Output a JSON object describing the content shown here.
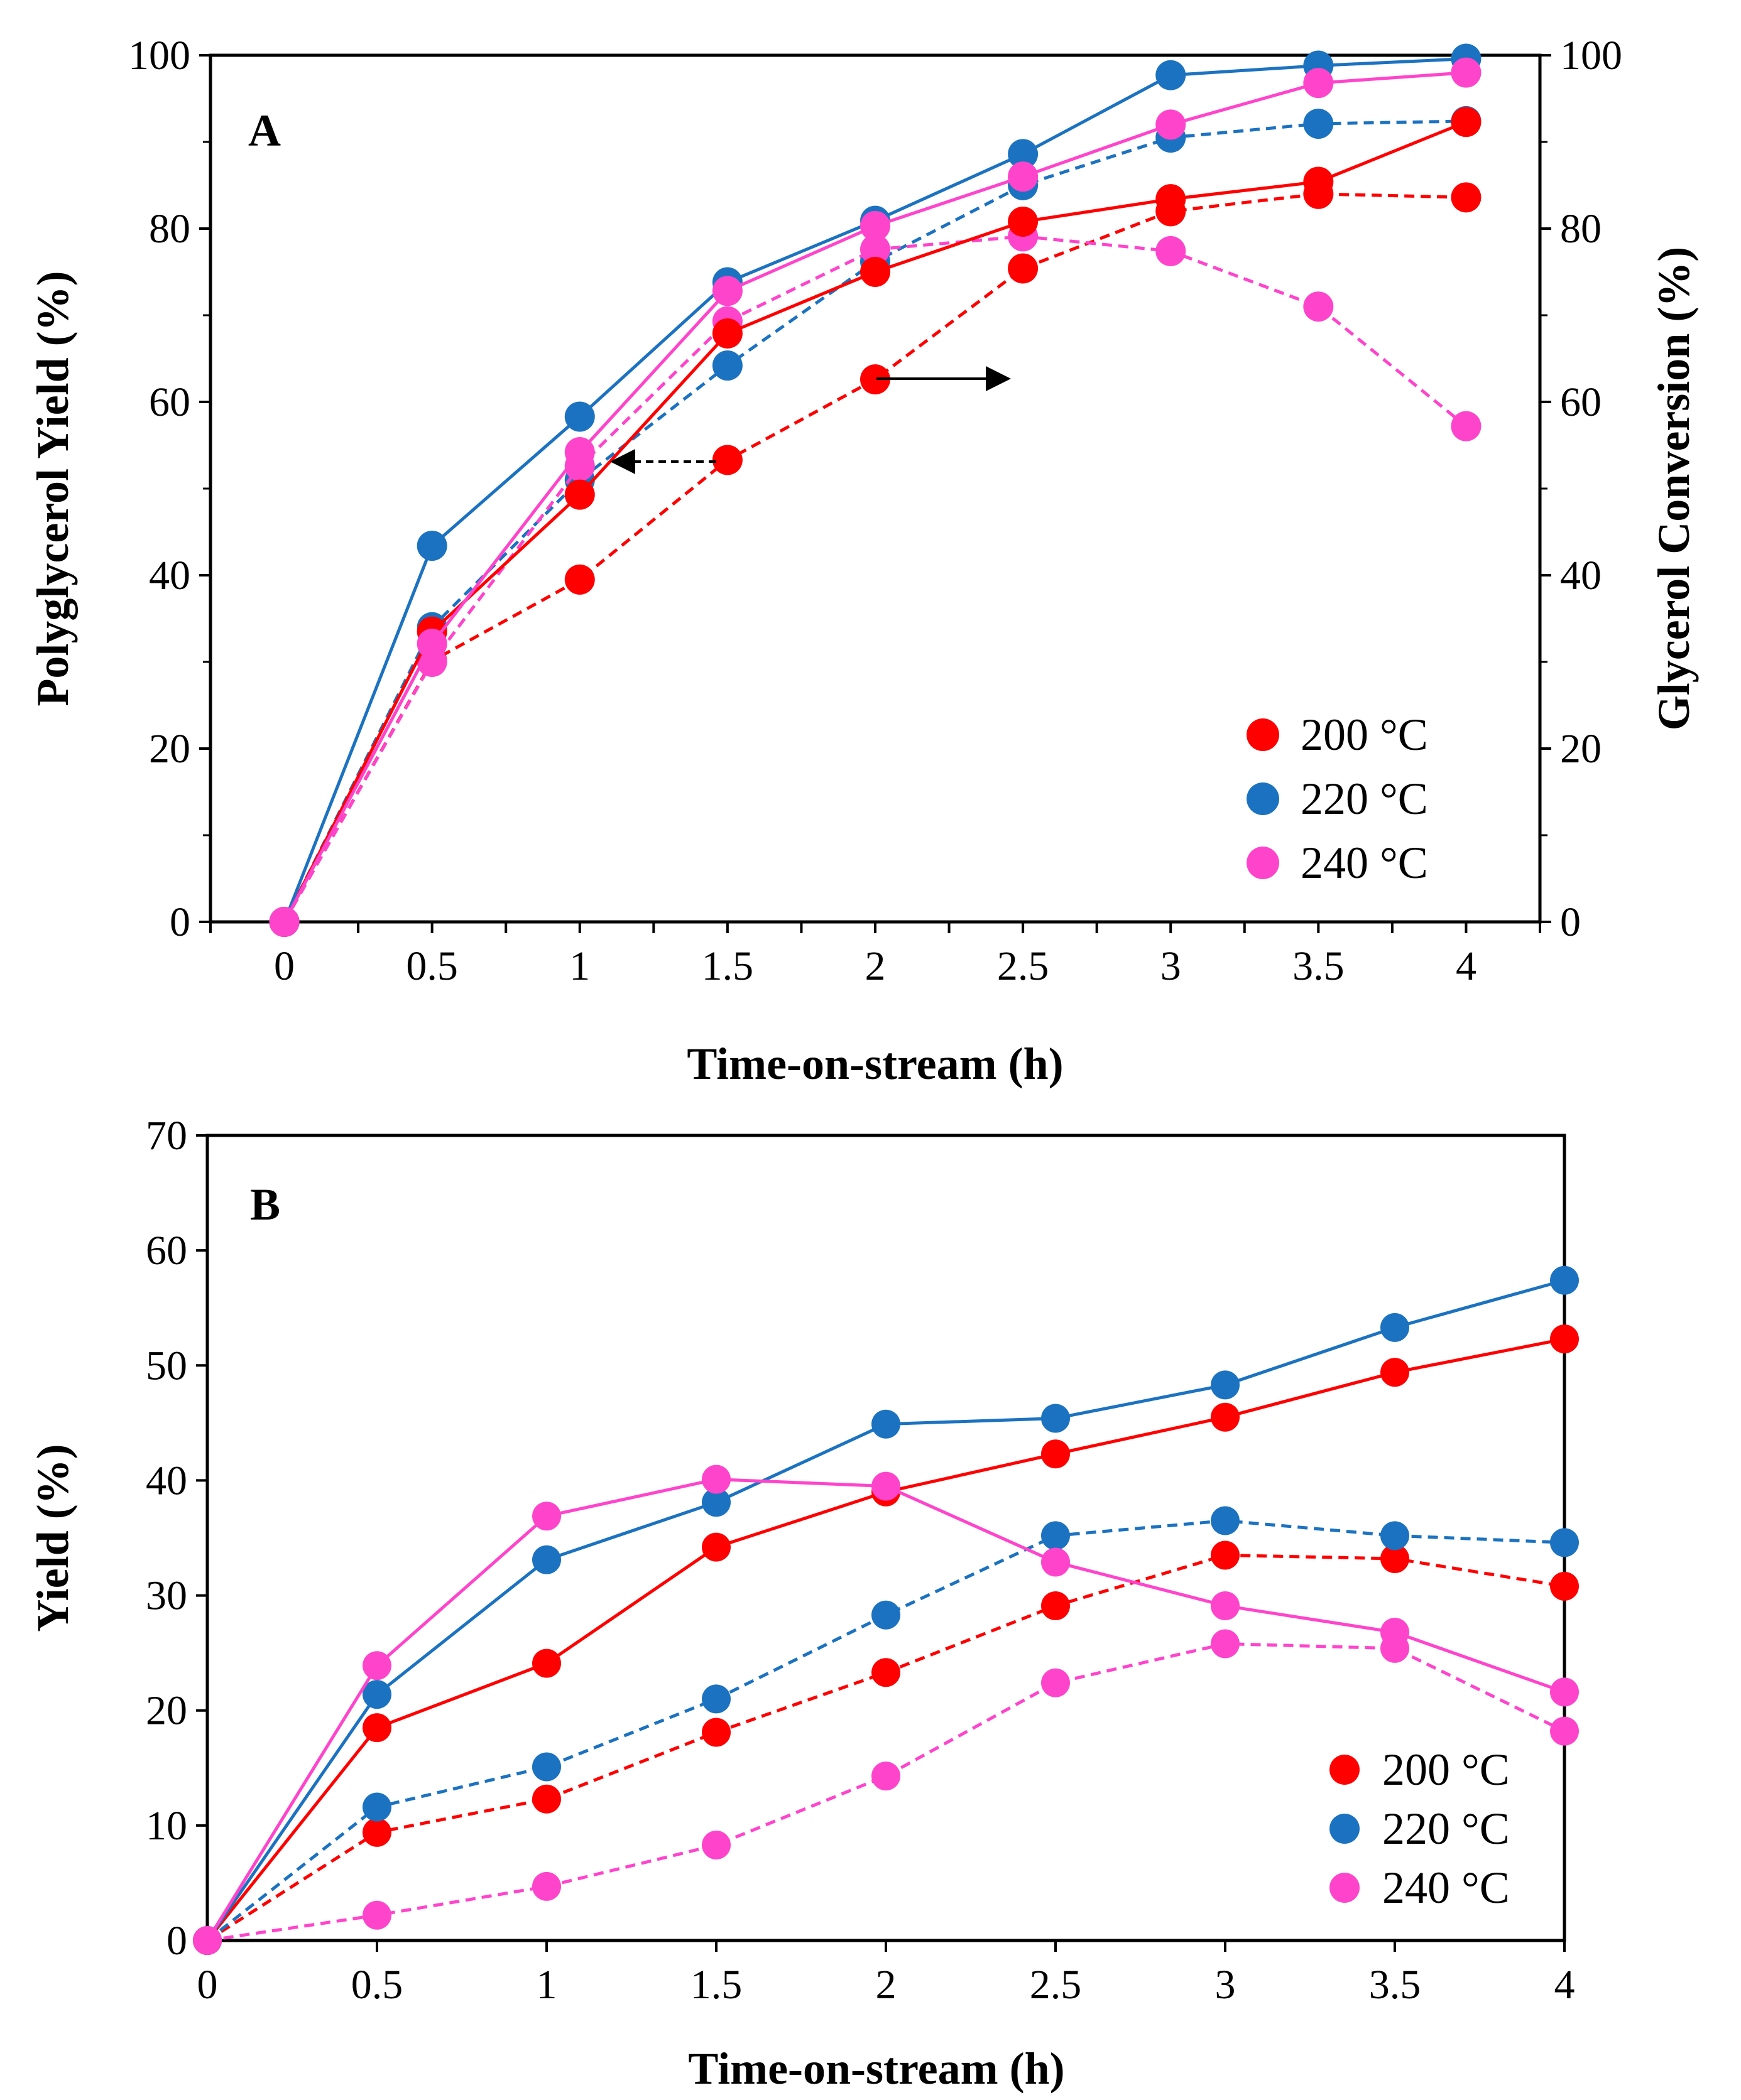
{
  "chart_data": [
    {
      "type": "line",
      "panel_label": "A",
      "xlabel": "Time-on-stream (h)",
      "ylabel": "Polyglycerol Yield (%)",
      "y2label": "Glycerol Conversion (%)",
      "x": [
        0,
        0.5,
        1,
        1.5,
        2,
        2.5,
        3,
        3.5,
        4
      ],
      "x_tick_labels": [
        "0",
        "0.5",
        "1",
        "1.5",
        "2",
        "2.5",
        "3",
        "3.5",
        "4"
      ],
      "xlim": [
        -0.25,
        4.25
      ],
      "ylim": [
        0,
        100
      ],
      "y_ticks": [
        0,
        20,
        40,
        60,
        80,
        100
      ],
      "y_tick_labels": [
        "0",
        "20",
        "40",
        "60",
        "80",
        "100"
      ],
      "y2lim": [
        0,
        100
      ],
      "y2_ticks": [
        0,
        20,
        40,
        60,
        80,
        100
      ],
      "y2_tick_labels": [
        "0",
        "20",
        "40",
        "60",
        "80",
        "100"
      ],
      "legend_position": "bottom-right",
      "legend": [
        "200 °C",
        "220 °C",
        "240 °C"
      ],
      "series": [
        {
          "name": "200 °C",
          "color": "#ff0000",
          "dash": false,
          "axis": "right",
          "quantity": "Glycerol Conversion",
          "values": [
            0,
            33.5,
            49.3,
            67.9,
            75.0,
            80.8,
            83.4,
            85.4,
            92.3
          ]
        },
        {
          "name": "220 °C",
          "color": "#1b72c0",
          "dash": false,
          "axis": "right",
          "quantity": "Glycerol Conversion",
          "values": [
            0,
            43.4,
            58.3,
            73.8,
            80.9,
            88.6,
            97.7,
            98.8,
            99.6
          ]
        },
        {
          "name": "240 °C",
          "color": "#ff44cc",
          "dash": false,
          "axis": "right",
          "quantity": "Glycerol Conversion",
          "values": [
            0,
            32.1,
            54.2,
            72.8,
            80.3,
            86.0,
            92.0,
            96.8,
            98.0
          ]
        },
        {
          "name": "200 °C",
          "color": "#ff0000",
          "dash": true,
          "axis": "left",
          "quantity": "Polyglycerol Yield",
          "values": [
            0,
            30.1,
            39.5,
            53.3,
            62.6,
            75.4,
            82.0,
            84.0,
            83.6
          ]
        },
        {
          "name": "220 °C",
          "color": "#1b72c0",
          "dash": true,
          "axis": "left",
          "quantity": "Polyglycerol Yield",
          "values": [
            0,
            34.0,
            51.0,
            64.2,
            76.2,
            85.0,
            90.5,
            92.1,
            92.4
          ]
        },
        {
          "name": "240 °C",
          "color": "#ff44cc",
          "dash": true,
          "axis": "left",
          "quantity": "Polyglycerol Yield",
          "values": [
            0,
            30.0,
            52.6,
            69.3,
            77.6,
            79.1,
            77.4,
            71.0,
            57.2
          ]
        }
      ]
    },
    {
      "type": "line",
      "panel_label": "B",
      "xlabel": "Time-on-stream (h)",
      "ylabel": "Yield (%)",
      "x": [
        0,
        0.5,
        1,
        1.5,
        2,
        2.5,
        3,
        3.5,
        4
      ],
      "x_tick_labels": [
        "0",
        "0.5",
        "1",
        "1.5",
        "2",
        "2.5",
        "3",
        "3.5",
        "4"
      ],
      "xlim": [
        0,
        4
      ],
      "ylim": [
        0,
        70
      ],
      "y_ticks": [
        0,
        10,
        20,
        30,
        40,
        50,
        60,
        70
      ],
      "y_tick_labels": [
        "0",
        "10",
        "20",
        "30",
        "40",
        "50",
        "60",
        "70"
      ],
      "legend_position": "bottom-right",
      "legend": [
        "200 °C",
        "220 °C",
        "240 °C"
      ],
      "series": [
        {
          "name": "200 °C",
          "color": "#ff0000",
          "dash": false,
          "values": [
            0,
            18.5,
            24.1,
            34.2,
            39.0,
            42.3,
            45.5,
            49.4,
            52.3
          ]
        },
        {
          "name": "220 °C",
          "color": "#1b72c0",
          "dash": false,
          "values": [
            0,
            21.4,
            33.1,
            38.1,
            44.9,
            45.4,
            48.3,
            53.3,
            57.4
          ]
        },
        {
          "name": "240 °C",
          "color": "#ff44cc",
          "dash": false,
          "values": [
            0,
            23.9,
            36.9,
            40.1,
            39.5,
            32.9,
            29.1,
            26.8,
            21.6
          ]
        },
        {
          "name": "200 °C",
          "color": "#ff0000",
          "dash": true,
          "values": [
            0,
            9.4,
            12.3,
            18.1,
            23.3,
            29.1,
            33.5,
            33.2,
            30.8
          ]
        },
        {
          "name": "220 °C",
          "color": "#1b72c0",
          "dash": true,
          "values": [
            0,
            11.6,
            15.1,
            21.0,
            28.3,
            35.2,
            36.5,
            35.2,
            34.6
          ]
        },
        {
          "name": "240 °C",
          "color": "#ff44cc",
          "dash": true,
          "values": [
            0,
            2.2,
            4.7,
            8.3,
            14.3,
            22.4,
            25.8,
            25.4,
            18.2
          ]
        }
      ]
    }
  ]
}
